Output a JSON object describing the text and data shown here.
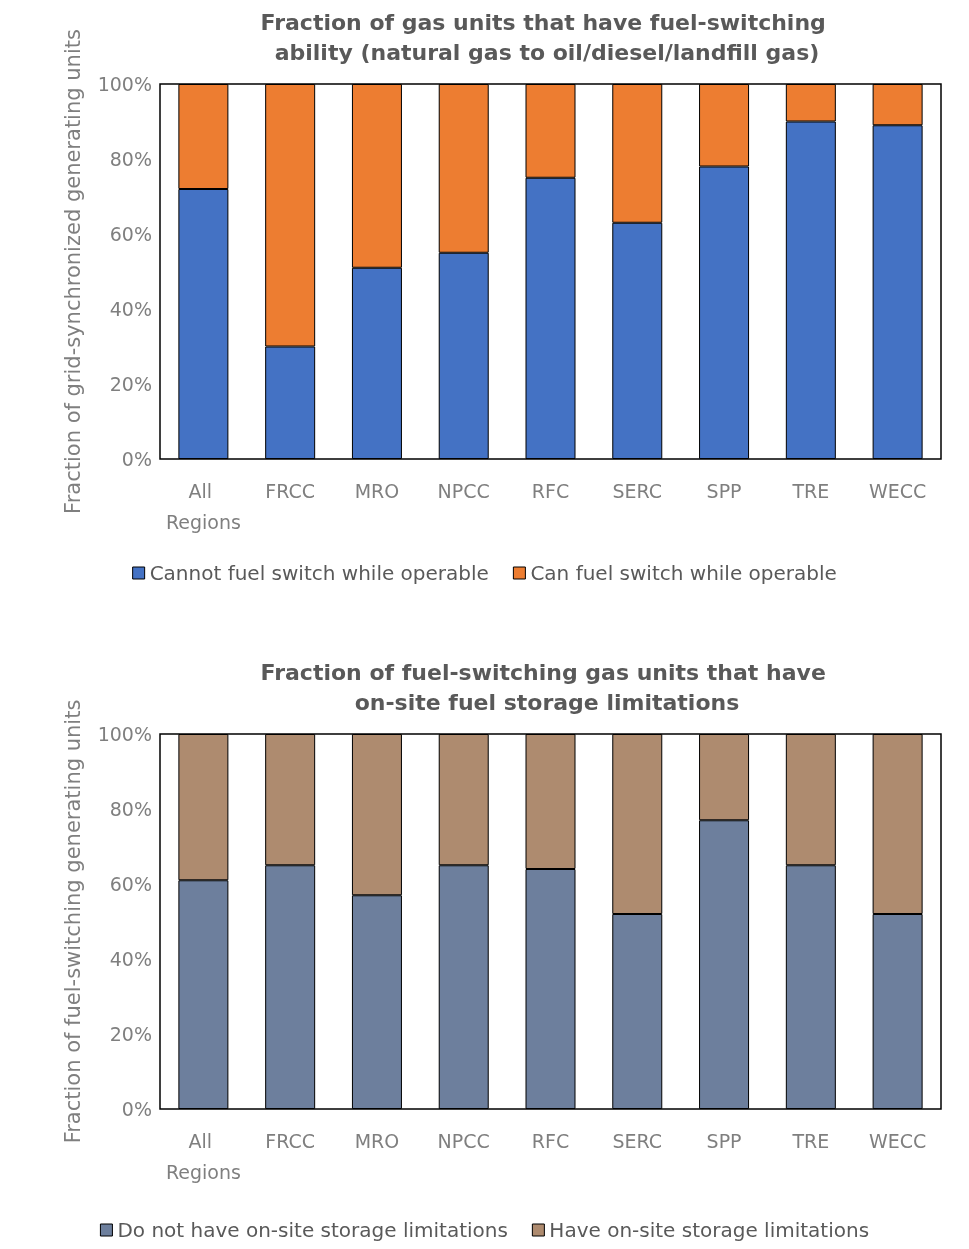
{
  "chart_data": [
    {
      "type": "bar",
      "title": "Fraction of gas units that have fuel-switching ability (natural gas to oil/diesel/landfill gas)",
      "ylabel": "Fraction of grid-synchronized generating units",
      "categories": [
        "All Regions",
        "FRCC",
        "MRO",
        "NPCC",
        "RFC",
        "SERC",
        "SPP",
        "TRE",
        "WECC"
      ],
      "stacked": true,
      "series": [
        {
          "name": "Cannot fuel switch while operable",
          "color": "#4472c4",
          "values": [
            72,
            30,
            51,
            55,
            75,
            63,
            78,
            90,
            89
          ]
        },
        {
          "name": "Can fuel switch while operable",
          "color": "#ed7d31",
          "values": [
            28,
            70,
            49,
            45,
            25,
            37,
            22,
            10,
            11
          ]
        }
      ],
      "ylim": [
        0,
        100
      ],
      "yticks": [
        {
          "value": 0,
          "label": "0%"
        },
        {
          "value": 20,
          "label": "20%"
        },
        {
          "value": 40,
          "label": "40%"
        },
        {
          "value": 60,
          "label": "60%"
        },
        {
          "value": 80,
          "label": "80%"
        },
        {
          "value": 100,
          "label": "100%"
        }
      ],
      "grid": false,
      "legend": "bottom"
    },
    {
      "type": "bar",
      "title": "Fraction of fuel-switching gas units that have on-site fuel storage limitations",
      "ylabel": "Fraction of fuel-switching generating units",
      "categories": [
        "All Regions",
        "FRCC",
        "MRO",
        "NPCC",
        "RFC",
        "SERC",
        "SPP",
        "TRE",
        "WECC"
      ],
      "stacked": true,
      "series": [
        {
          "name": "Do not have on-site storage limitations",
          "color": "#6d7f9d",
          "values": [
            61,
            65,
            57,
            65,
            64,
            52,
            77,
            65,
            52
          ]
        },
        {
          "name": "Have on-site storage limitations",
          "color": "#ae8b6f",
          "values": [
            39,
            35,
            43,
            35,
            36,
            48,
            23,
            35,
            48
          ]
        }
      ],
      "ylim": [
        0,
        100
      ],
      "yticks": [
        {
          "value": 0,
          "label": "0%"
        },
        {
          "value": 20,
          "label": "20%"
        },
        {
          "value": 40,
          "label": "40%"
        },
        {
          "value": 60,
          "label": "60%"
        },
        {
          "value": 80,
          "label": "80%"
        },
        {
          "value": 100,
          "label": "100%"
        }
      ],
      "grid": false,
      "legend": "bottom"
    }
  ]
}
